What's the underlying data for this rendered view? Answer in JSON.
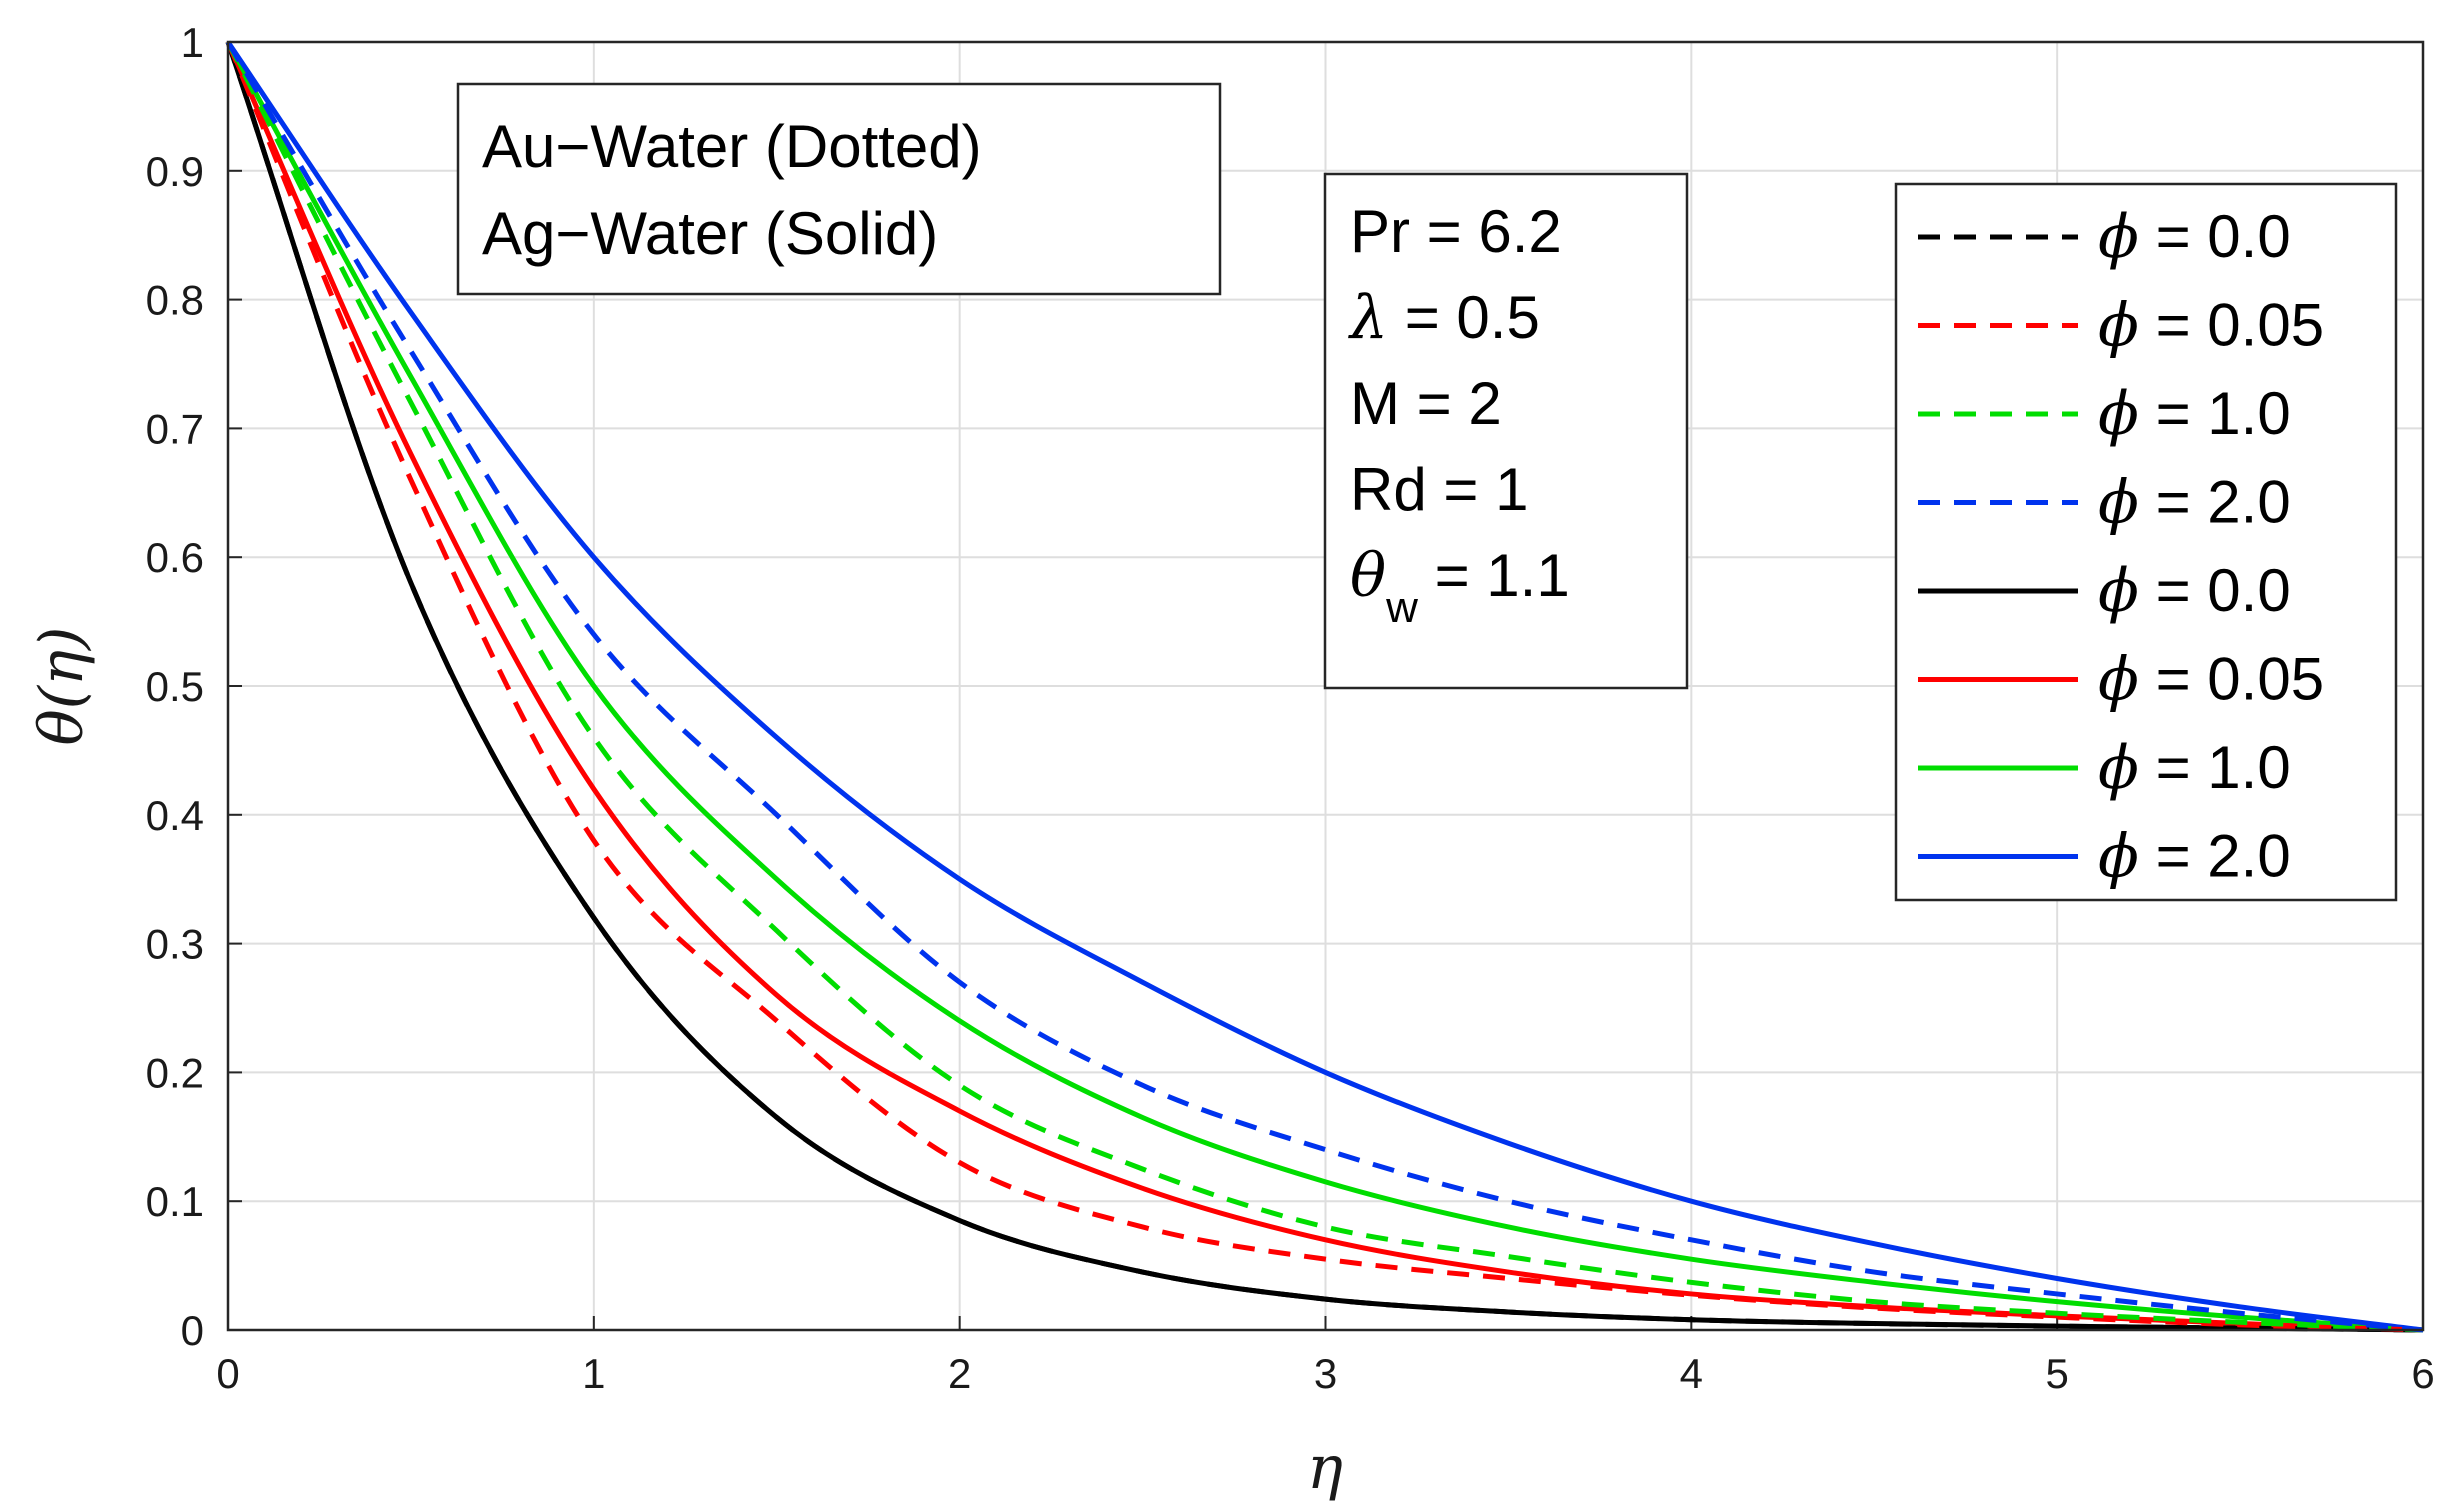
{
  "chart_data": {
    "type": "line",
    "xlabel": "η",
    "ylabel": "θ(η)",
    "xlim": [
      0,
      6
    ],
    "ylim": [
      0,
      1
    ],
    "xticks": [
      "0",
      "1",
      "2",
      "3",
      "4",
      "5",
      "6"
    ],
    "yticks": [
      "0",
      "0.1",
      "0.2",
      "0.3",
      "0.4",
      "0.5",
      "0.6",
      "0.7",
      "0.8",
      "0.9",
      "1"
    ],
    "grid": true,
    "legend_position": "top-right",
    "x": [
      0,
      0.5,
      1,
      1.5,
      2,
      2.5,
      3,
      3.5,
      4,
      4.5,
      5,
      5.5,
      6
    ],
    "series": [
      {
        "name": "ϕ = 0.0",
        "style": "dashed",
        "color": "#000000",
        "values": [
          1,
          0.58,
          0.32,
          0.165,
          0.085,
          0.045,
          0.024,
          0.014,
          0.008,
          0.005,
          0.003,
          0.0015,
          0
        ]
      },
      {
        "name": "ϕ = 0.05",
        "style": "dashed",
        "color": "#ff0000",
        "values": [
          1,
          0.66,
          0.38,
          0.24,
          0.13,
          0.08,
          0.055,
          0.04,
          0.027,
          0.017,
          0.01,
          0.004,
          0
        ]
      },
      {
        "name": "ϕ = 1.0",
        "style": "dashed",
        "color": "#00dd00",
        "values": [
          1,
          0.72,
          0.46,
          0.31,
          0.19,
          0.125,
          0.08,
          0.057,
          0.037,
          0.022,
          0.013,
          0.006,
          0
        ]
      },
      {
        "name": "ϕ = 2.0",
        "style": "dashed",
        "color": "#0033ee",
        "values": [
          1,
          0.76,
          0.54,
          0.4,
          0.27,
          0.19,
          0.14,
          0.1,
          0.07,
          0.045,
          0.028,
          0.013,
          0
        ]
      },
      {
        "name": "ϕ = 0.0",
        "style": "solid",
        "color": "#000000",
        "values": [
          1,
          0.58,
          0.32,
          0.165,
          0.085,
          0.045,
          0.024,
          0.014,
          0.008,
          0.005,
          0.003,
          0.0015,
          0
        ]
      },
      {
        "name": "ϕ = 0.05",
        "style": "solid",
        "color": "#ff0000",
        "values": [
          1,
          0.68,
          0.42,
          0.26,
          0.17,
          0.11,
          0.07,
          0.045,
          0.028,
          0.018,
          0.011,
          0.005,
          0
        ]
      },
      {
        "name": "ϕ = 1.0",
        "style": "solid",
        "color": "#00dd00",
        "values": [
          1,
          0.74,
          0.5,
          0.35,
          0.24,
          0.165,
          0.115,
          0.08,
          0.055,
          0.037,
          0.022,
          0.01,
          0
        ]
      },
      {
        "name": "ϕ = 2.0",
        "style": "solid",
        "color": "#0033ee",
        "values": [
          1,
          0.79,
          0.6,
          0.46,
          0.35,
          0.27,
          0.2,
          0.145,
          0.1,
          0.067,
          0.04,
          0.018,
          0
        ]
      }
    ],
    "annotations": {
      "fluid_box": [
        "Au−Water (Dotted)",
        "Ag−Water (Solid)"
      ],
      "params_box": [
        "Pr = 6.2",
        "λ = 0.5",
        "M = 2",
        "Rd = 1",
        "θw = 1.1"
      ]
    }
  }
}
